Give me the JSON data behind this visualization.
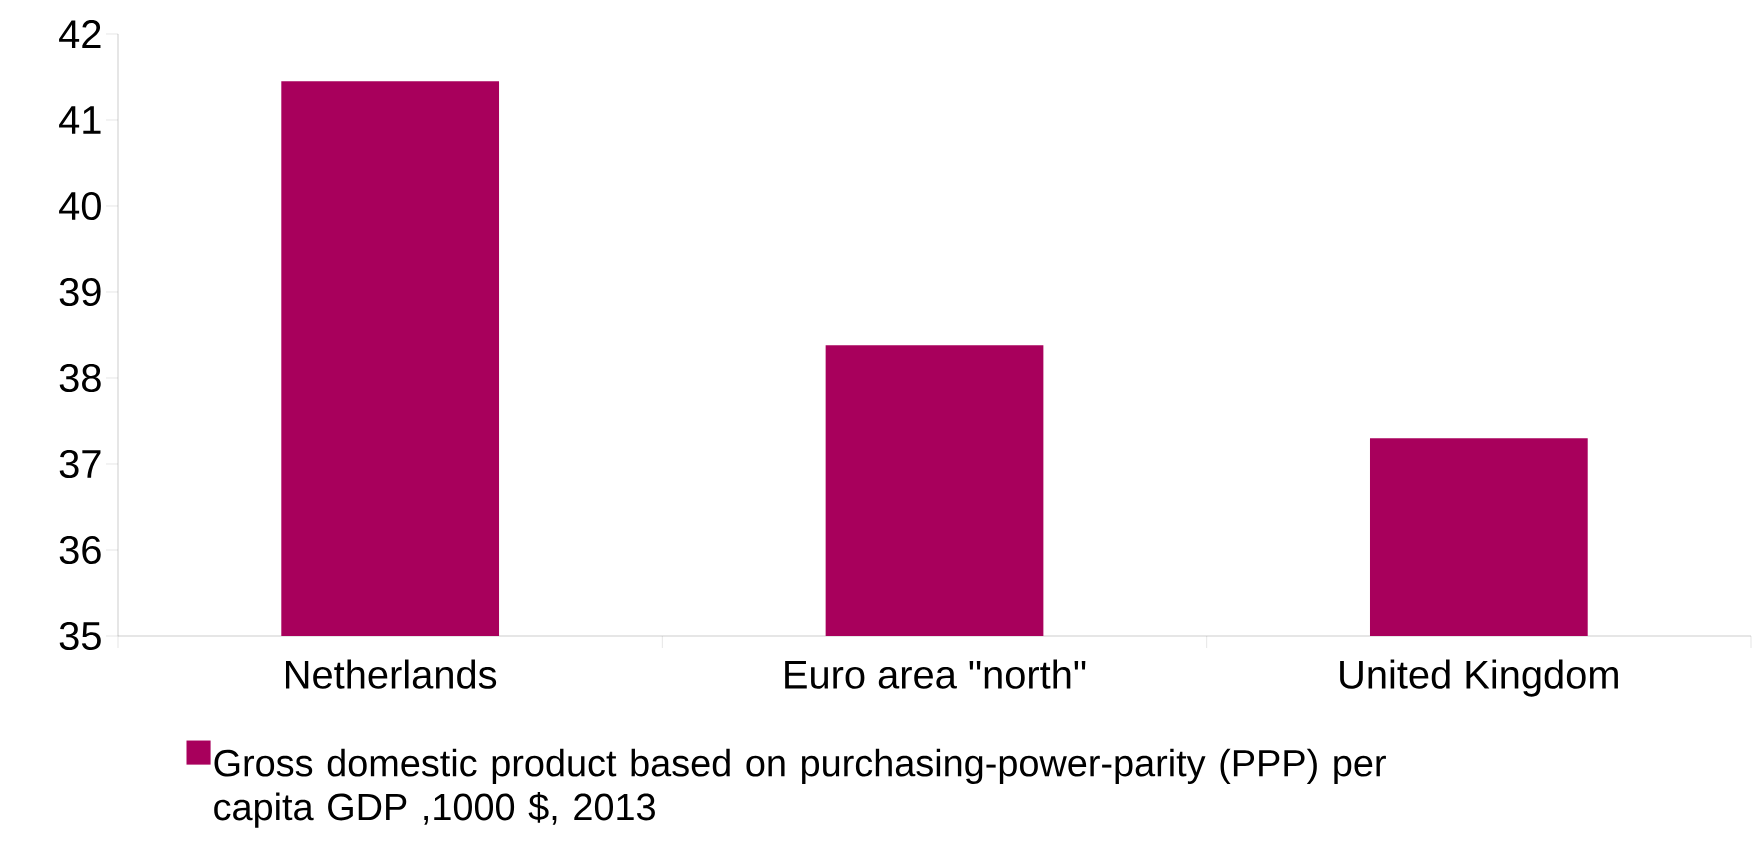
{
  "chart_data": {
    "type": "bar",
    "categories": [
      "Netherlands",
      "Euro area \"north\"",
      "United Kingdom"
    ],
    "series": [
      {
        "name": "Gross domestic product based on purchasing-power-parity (PPP) per capita GDP ,1000 $, 2013",
        "color": "#a8005c",
        "values": [
          41.45,
          38.38,
          37.3
        ]
      }
    ],
    "ylim": [
      35,
      42
    ],
    "yticks": [
      35,
      36,
      37,
      38,
      39,
      40,
      41,
      42
    ],
    "grid": false,
    "legend": "bottom"
  }
}
